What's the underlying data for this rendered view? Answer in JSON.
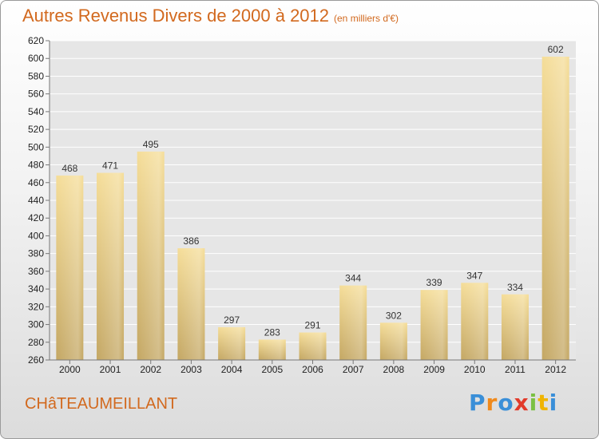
{
  "header": {
    "title": "Autres Revenus Divers de 2000 à 2012",
    "unit": "(en milliers d'€)"
  },
  "footer": {
    "place": "CHâTEAUMEILLANT",
    "logo_letters": [
      "P",
      "r",
      "o",
      "x",
      "i",
      "t",
      "i"
    ],
    "logo_colors": [
      "#3a8fd8",
      "#f08a1c",
      "#3a8fd8",
      "#e23a2a",
      "#7bc043",
      "#f0b400",
      "#3a8fd8"
    ]
  },
  "colors": {
    "title": "#d2691e",
    "bar_light": "#f5dd98",
    "bar_dark": "#c4a763",
    "plot_bg": "#e6e6e6"
  },
  "chart_data": {
    "type": "bar",
    "categories": [
      "2000",
      "2001",
      "2002",
      "2003",
      "2004",
      "2005",
      "2006",
      "2007",
      "2008",
      "2009",
      "2010",
      "2011",
      "2012"
    ],
    "values": [
      468,
      471,
      495,
      386,
      297,
      283,
      291,
      344,
      302,
      339,
      347,
      334,
      602
    ],
    "title": "Autres Revenus Divers de 2000 à 2012",
    "xlabel": "",
    "ylabel": "",
    "ylim": [
      260,
      620
    ],
    "yticks": [
      260,
      280,
      300,
      320,
      340,
      360,
      380,
      400,
      420,
      440,
      460,
      480,
      500,
      520,
      540,
      560,
      580,
      600,
      620
    ],
    "grid": true,
    "legend": "none"
  }
}
